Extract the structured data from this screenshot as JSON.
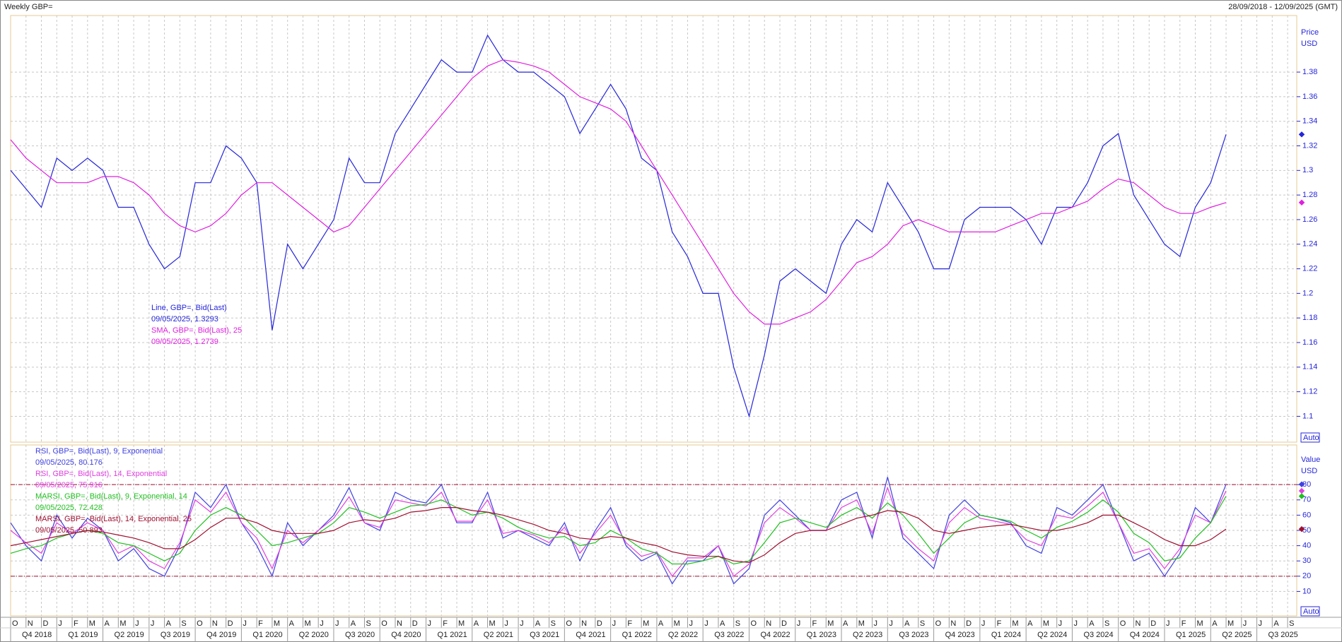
{
  "chart_data": [
    {
      "type": "line",
      "title": "Weekly GBP=",
      "subtitle": "28/09/2018 - 12/09/2025 (GMT)",
      "y_label": "Price",
      "y_unit": "USD",
      "scale_button": "Auto",
      "categories": [
        "O",
        "N",
        "D",
        "J",
        "F",
        "M",
        "A",
        "M",
        "J",
        "J",
        "A",
        "S",
        "O",
        "N",
        "D",
        "J",
        "F",
        "M",
        "A",
        "M",
        "J",
        "J",
        "A",
        "S",
        "O",
        "N",
        "D",
        "J",
        "F",
        "M",
        "A",
        "M",
        "J",
        "J",
        "A",
        "S",
        "O",
        "N",
        "D",
        "J",
        "F",
        "M",
        "A",
        "M",
        "J",
        "J",
        "A",
        "S",
        "O",
        "N",
        "D",
        "J",
        "F",
        "M",
        "A",
        "M",
        "J",
        "J",
        "A",
        "S",
        "O",
        "N",
        "D",
        "J",
        "F",
        "M",
        "A",
        "M",
        "J",
        "J",
        "A",
        "S",
        "O",
        "N",
        "D",
        "J",
        "F",
        "M",
        "A",
        "M",
        "J",
        "J",
        "A",
        "S"
      ],
      "ylim": [
        1.079,
        1.426
      ],
      "yticks": [
        1.1,
        1.12,
        1.14,
        1.16,
        1.18,
        1.2,
        1.22,
        1.24,
        1.26,
        1.28,
        1.3,
        1.32,
        1.34,
        1.36,
        1.38
      ],
      "grid": true,
      "series": [
        {
          "name": "Line, GBP=, Bid(Last)",
          "note": "09/05/2025, 1.3293",
          "color": "#2626d9",
          "values": [
            1.3,
            1.285,
            1.27,
            1.31,
            1.3,
            1.31,
            1.3,
            1.27,
            1.27,
            1.24,
            1.22,
            1.23,
            1.29,
            1.29,
            1.32,
            1.31,
            1.29,
            1.17,
            1.24,
            1.22,
            1.24,
            1.26,
            1.31,
            1.29,
            1.29,
            1.33,
            1.35,
            1.37,
            1.39,
            1.38,
            1.38,
            1.41,
            1.39,
            1.38,
            1.38,
            1.37,
            1.36,
            1.33,
            1.35,
            1.37,
            1.35,
            1.31,
            1.3,
            1.25,
            1.23,
            1.2,
            1.2,
            1.14,
            1.1,
            1.15,
            1.21,
            1.22,
            1.21,
            1.2,
            1.24,
            1.26,
            1.25,
            1.29,
            1.27,
            1.25,
            1.22,
            1.22,
            1.26,
            1.27,
            1.27,
            1.27,
            1.26,
            1.24,
            1.27,
            1.27,
            1.29,
            1.32,
            1.33,
            1.28,
            1.26,
            1.24,
            1.23,
            1.27,
            1.29,
            1.3293,
            null,
            null,
            null,
            null
          ]
        },
        {
          "name": "SMA, GBP=, Bid(Last), 25",
          "note": "09/05/2025, 1.2739",
          "color": "#e020e0",
          "values": [
            1.325,
            1.31,
            1.3,
            1.29,
            1.29,
            1.29,
            1.295,
            1.295,
            1.29,
            1.28,
            1.265,
            1.255,
            1.25,
            1.255,
            1.265,
            1.28,
            1.29,
            1.29,
            1.28,
            1.27,
            1.26,
            1.25,
            1.255,
            1.27,
            1.285,
            1.3,
            1.315,
            1.33,
            1.345,
            1.36,
            1.375,
            1.385,
            1.39,
            1.388,
            1.385,
            1.38,
            1.37,
            1.36,
            1.355,
            1.35,
            1.34,
            1.32,
            1.3,
            1.28,
            1.26,
            1.24,
            1.22,
            1.2,
            1.185,
            1.175,
            1.175,
            1.18,
            1.185,
            1.195,
            1.21,
            1.225,
            1.23,
            1.24,
            1.255,
            1.26,
            1.255,
            1.25,
            1.25,
            1.25,
            1.25,
            1.255,
            1.26,
            1.265,
            1.265,
            1.27,
            1.275,
            1.285,
            1.293,
            1.29,
            1.28,
            1.27,
            1.265,
            1.265,
            1.27,
            1.2739,
            null,
            null,
            null,
            null
          ]
        }
      ]
    },
    {
      "type": "line",
      "y_label": "Value",
      "y_unit": "USD",
      "scale_button": "Auto",
      "categories": [
        "O",
        "N",
        "D",
        "J",
        "F",
        "M",
        "A",
        "M",
        "J",
        "J",
        "A",
        "S",
        "O",
        "N",
        "D",
        "J",
        "F",
        "M",
        "A",
        "M",
        "J",
        "J",
        "A",
        "S",
        "O",
        "N",
        "D",
        "J",
        "F",
        "M",
        "A",
        "M",
        "J",
        "J",
        "A",
        "S",
        "O",
        "N",
        "D",
        "J",
        "F",
        "M",
        "A",
        "M",
        "J",
        "J",
        "A",
        "S",
        "O",
        "N",
        "D",
        "J",
        "F",
        "M",
        "A",
        "M",
        "J",
        "J",
        "A",
        "S",
        "O",
        "N",
        "D",
        "J",
        "F",
        "M",
        "A",
        "M",
        "J",
        "J",
        "A",
        "S",
        "O",
        "N",
        "D",
        "J",
        "F",
        "M",
        "A",
        "M",
        "J",
        "J",
        "A",
        "S"
      ],
      "quarters": [
        "Q4 2018",
        "Q1 2019",
        "Q2 2019",
        "Q3 2019",
        "Q4 2019",
        "Q1 2020",
        "Q2 2020",
        "Q3 2020",
        "Q4 2020",
        "Q1 2021",
        "Q2 2021",
        "Q3 2021",
        "Q4 2021",
        "Q1 2022",
        "Q2 2022",
        "Q3 2022",
        "Q4 2022",
        "Q1 2023",
        "Q2 2023",
        "Q3 2023",
        "Q4 2023",
        "Q1 2024",
        "Q2 2024",
        "Q3 2024",
        "Q4 2024",
        "Q1 2025",
        "Q2 2025",
        "Q3 2025"
      ],
      "ylim": [
        -6,
        106
      ],
      "yticks": [
        10,
        20,
        30,
        40,
        50,
        60,
        70,
        80
      ],
      "reference_lines": [
        20,
        80
      ],
      "grid": true,
      "series": [
        {
          "name": "RSI, GBP=, Bid(Last),  9, Exponential",
          "note": "09/05/2025, 80.176",
          "color": "#4040e0",
          "values": [
            55,
            40,
            30,
            60,
            45,
            58,
            50,
            30,
            38,
            25,
            20,
            40,
            75,
            65,
            80,
            55,
            40,
            20,
            55,
            40,
            50,
            60,
            78,
            55,
            50,
            75,
            70,
            68,
            80,
            55,
            55,
            75,
            45,
            50,
            45,
            40,
            55,
            30,
            50,
            65,
            40,
            30,
            35,
            15,
            30,
            30,
            40,
            15,
            25,
            60,
            70,
            60,
            50,
            50,
            70,
            75,
            45,
            85,
            45,
            35,
            25,
            60,
            70,
            60,
            58,
            55,
            40,
            35,
            65,
            60,
            70,
            80,
            55,
            30,
            35,
            20,
            35,
            65,
            55,
            80.176,
            null,
            null,
            null,
            null
          ]
        },
        {
          "name": "RSI, GBP=, Bid(Last),  14, Exponential",
          "note": "09/05/2025, 75.916",
          "color": "#e040e0",
          "values": [
            50,
            42,
            35,
            55,
            48,
            55,
            50,
            35,
            40,
            30,
            25,
            42,
            70,
            62,
            75,
            55,
            45,
            25,
            50,
            42,
            50,
            58,
            72,
            55,
            52,
            70,
            68,
            66,
            75,
            56,
            56,
            70,
            48,
            50,
            47,
            42,
            52,
            35,
            48,
            60,
            42,
            33,
            36,
            20,
            32,
            32,
            40,
            20,
            28,
            55,
            65,
            58,
            50,
            50,
            65,
            70,
            48,
            78,
            48,
            38,
            30,
            55,
            65,
            58,
            56,
            54,
            44,
            40,
            60,
            58,
            66,
            75,
            55,
            35,
            38,
            25,
            38,
            60,
            55,
            75.916,
            null,
            null,
            null,
            null
          ]
        },
        {
          "name": "MARSI, GBP=, Bid(Last),  9, Exponential, 14",
          "note": "09/05/2025, 72.428",
          "color": "#20c020",
          "values": [
            35,
            38,
            40,
            45,
            48,
            50,
            48,
            42,
            40,
            35,
            30,
            35,
            50,
            60,
            65,
            60,
            50,
            40,
            42,
            45,
            48,
            55,
            65,
            62,
            58,
            62,
            66,
            67,
            70,
            65,
            60,
            62,
            58,
            52,
            48,
            45,
            46,
            40,
            42,
            50,
            45,
            38,
            35,
            28,
            28,
            30,
            33,
            28,
            30,
            42,
            55,
            58,
            55,
            52,
            60,
            65,
            58,
            68,
            60,
            48,
            35,
            45,
            55,
            60,
            58,
            56,
            50,
            45,
            52,
            56,
            62,
            70,
            62,
            48,
            42,
            30,
            32,
            45,
            55,
            72.428,
            null,
            null,
            null,
            null
          ]
        },
        {
          "name": "MARSI, GBP=, Bid(Last),  14, Exponential, 25",
          "note": "09/05/2025, 50.893",
          "color": "#a01030",
          "values": [
            40,
            42,
            44,
            46,
            48,
            50,
            49,
            47,
            45,
            42,
            38,
            38,
            44,
            52,
            58,
            58,
            55,
            50,
            48,
            48,
            48,
            50,
            55,
            57,
            56,
            58,
            62,
            63,
            65,
            65,
            63,
            62,
            60,
            57,
            54,
            50,
            48,
            45,
            44,
            46,
            45,
            42,
            40,
            36,
            34,
            33,
            33,
            30,
            29,
            34,
            42,
            48,
            50,
            50,
            54,
            58,
            60,
            63,
            62,
            58,
            50,
            48,
            50,
            52,
            53,
            54,
            52,
            50,
            50,
            52,
            55,
            60,
            60,
            55,
            50,
            44,
            40,
            40,
            44,
            50.893,
            null,
            null,
            null,
            null
          ]
        }
      ]
    }
  ]
}
